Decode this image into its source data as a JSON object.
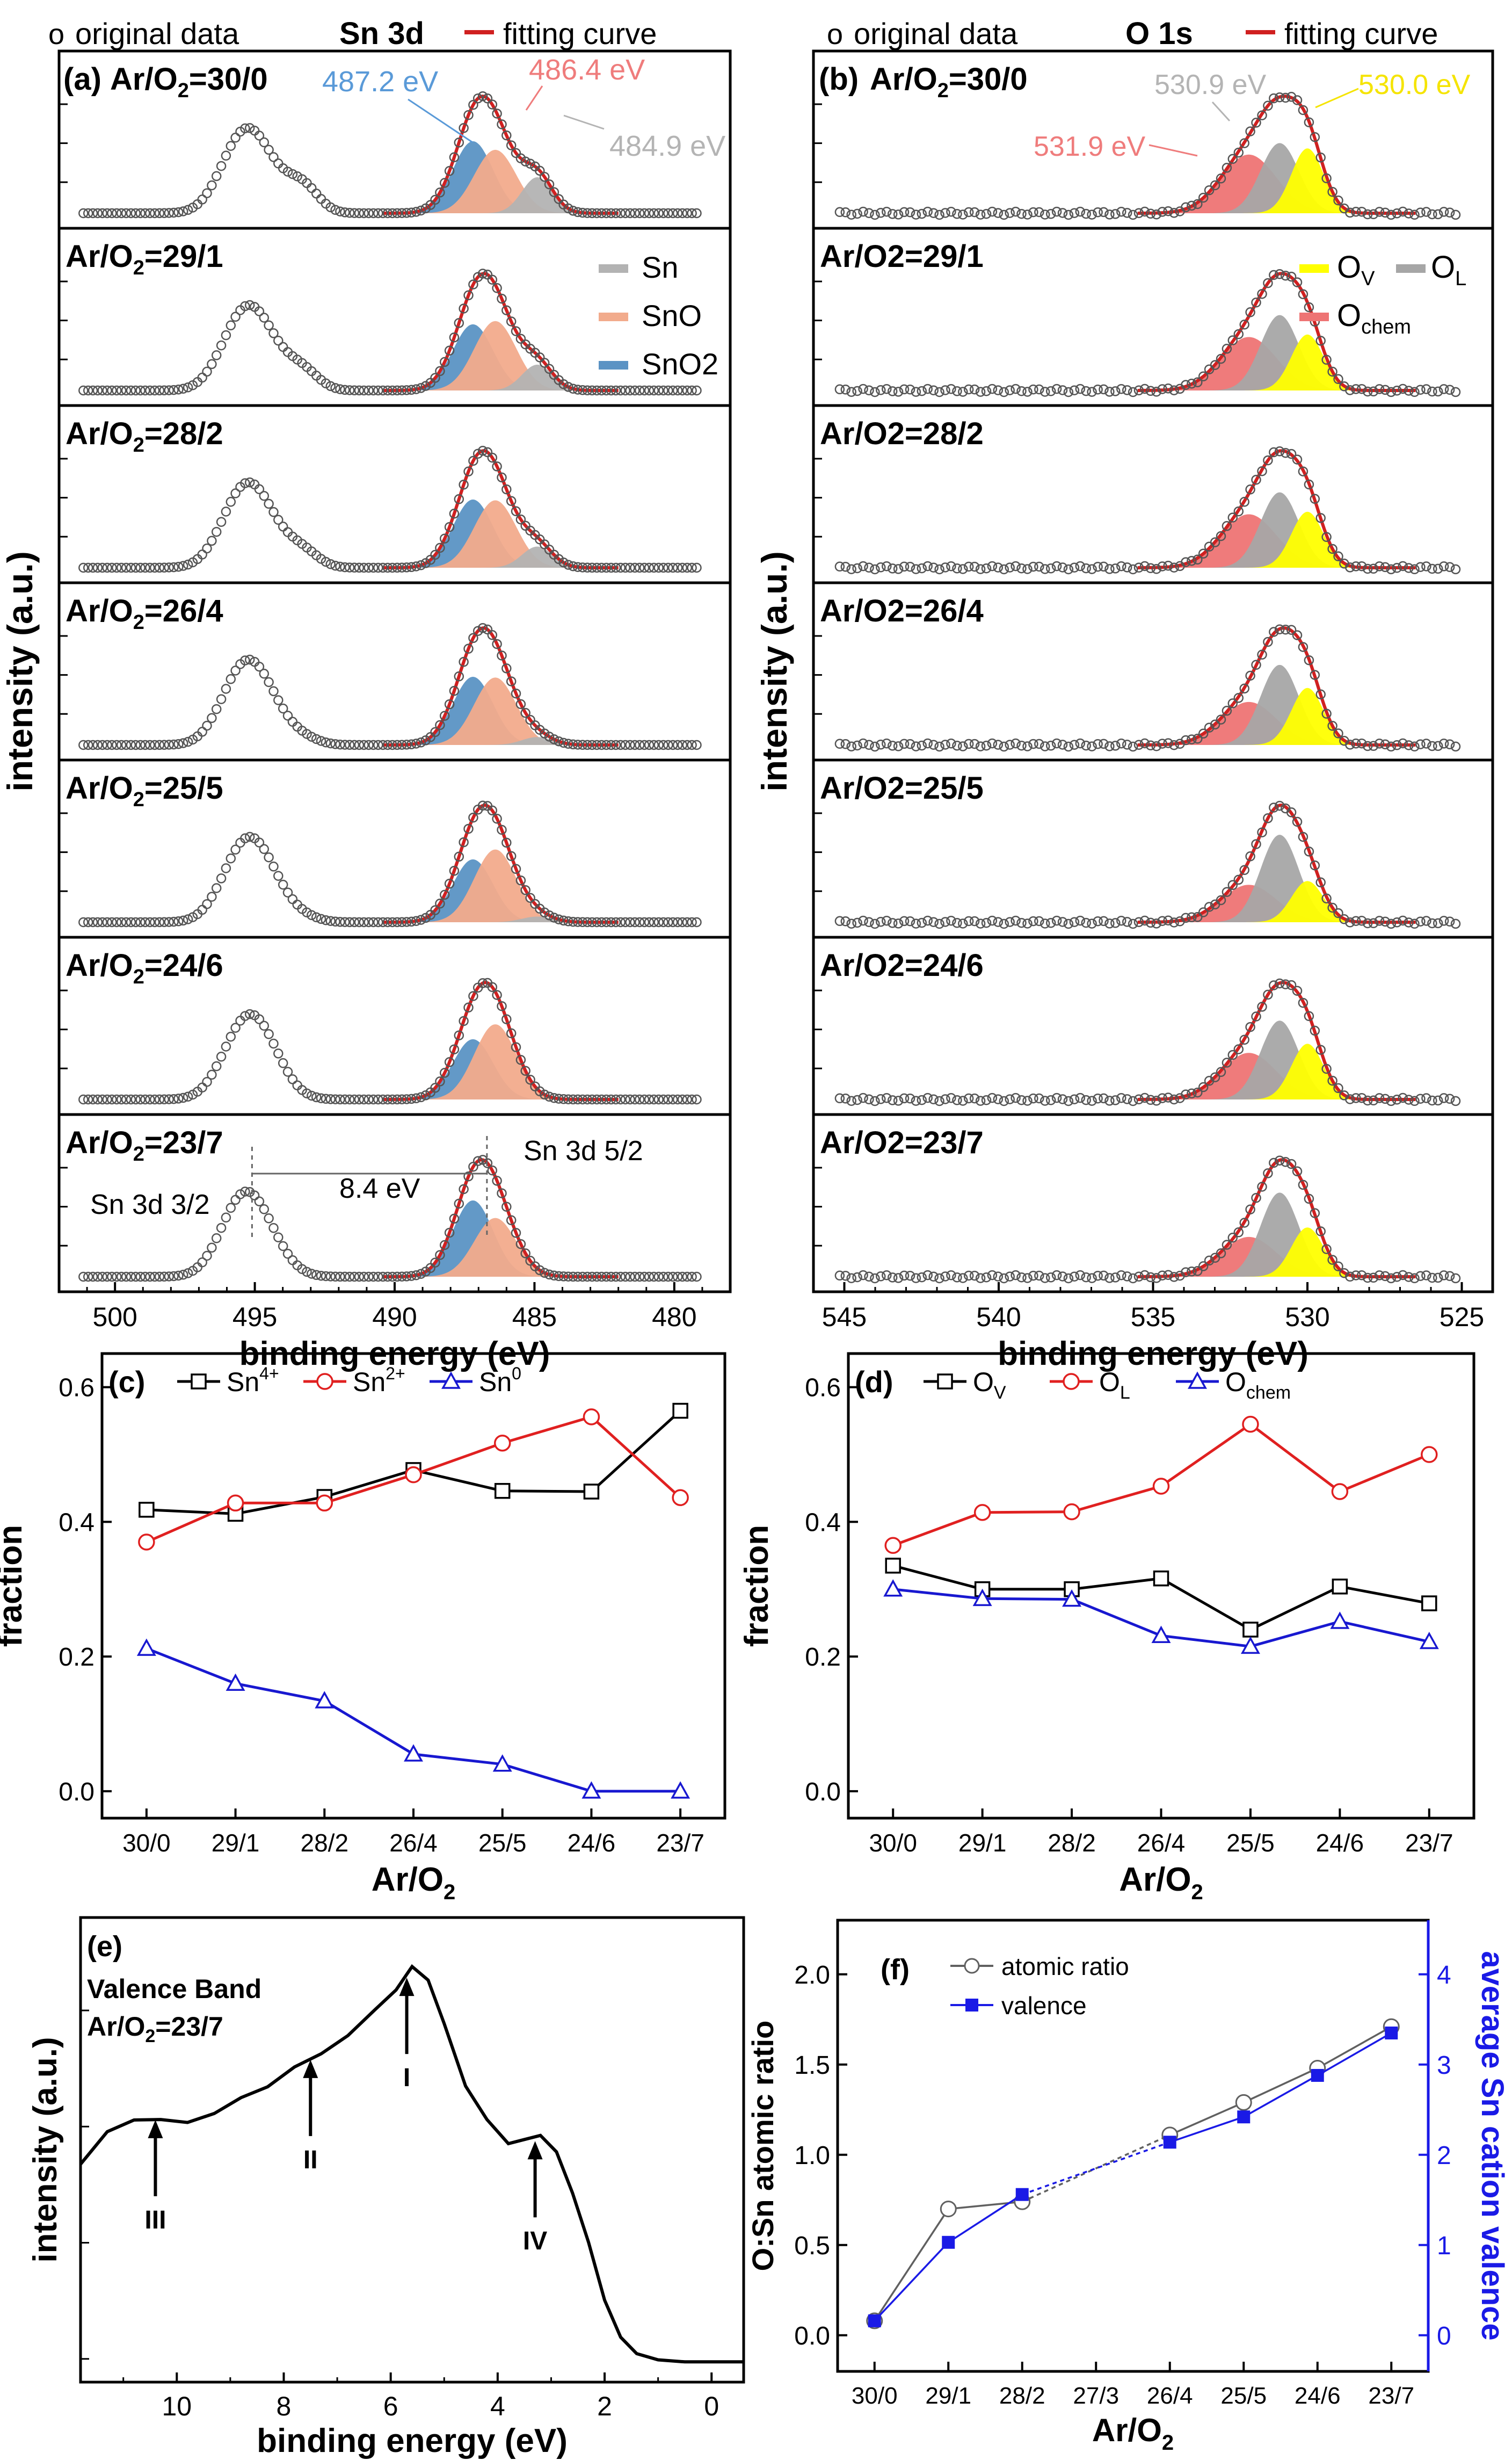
{
  "figure": "XPS and electrical analysis of Sn oxide films",
  "colors": {
    "frame": "#000000",
    "fit_red": "#d02020",
    "sn": "#b3b3b3",
    "sno": "#f2ab8c",
    "sno2": "#5b93c4",
    "ov": "#ffff00",
    "ol": "#a6a6a6",
    "ochem": "#ee7474",
    "series_black": "#000000",
    "series_red": "#e02020",
    "series_blue": "#1818d0",
    "valence_blue": "#1a1ae6",
    "label_blue": "#5a9ad8",
    "label_pink": "#ef7c7c",
    "label_gray": "#b4b4b4",
    "label_yellow": "#f5e400"
  },
  "chart_data": [
    {
      "id": "a",
      "type": "line",
      "title": "Sn 3d",
      "panel_label": "(a)",
      "legend": [
        "original data",
        "fitting curve"
      ],
      "legend_symbol": "ο",
      "xlabel": "binding energy (eV)",
      "ylabel": "intensity (a.u.)",
      "xlim": [
        502,
        478
      ],
      "xticks": [
        500,
        495,
        490,
        485,
        480
      ],
      "components": [
        "Sn",
        "SnO",
        "SnO2"
      ],
      "component_labels": [
        "Sn",
        "SnO",
        "SnO2"
      ],
      "peak_centers": {
        "Sn": 484.9,
        "SnO": 486.4,
        "SnO2": 487.2
      },
      "annotations": [
        "487.2 eV",
        "486.4 eV",
        "484.9 eV",
        "Sn 3d 3/2",
        "Sn 3d 5/2",
        "8.4 eV"
      ],
      "spin_orbit_splitting": 8.4,
      "stacks": [
        {
          "ratio": "Ar/O2=30/0",
          "label": "Ar/O",
          "sub": "2",
          "value": "=30/0",
          "fractions": {
            "Sn": 0.21,
            "SnO": 0.37,
            "SnO2": 0.42
          }
        },
        {
          "ratio": "Ar/O2=29/1",
          "label": "Ar/O",
          "sub": "2",
          "value": "=29/1",
          "fractions": {
            "Sn": 0.16,
            "SnO": 0.43,
            "SnO2": 0.41
          }
        },
        {
          "ratio": "Ar/O2=28/2",
          "label": "Ar/O",
          "sub": "2",
          "value": "=28/2",
          "fractions": {
            "Sn": 0.135,
            "SnO": 0.43,
            "SnO2": 0.435
          }
        },
        {
          "ratio": "Ar/O2=26/4",
          "label": "Ar/O",
          "sub": "2",
          "value": "=26/4",
          "fractions": {
            "Sn": 0.055,
            "SnO": 0.47,
            "SnO2": 0.475
          }
        },
        {
          "ratio": "Ar/O2=25/5",
          "label": "Ar/O",
          "sub": "2",
          "value": "=25/5",
          "fractions": {
            "Sn": 0.04,
            "SnO": 0.515,
            "SnO2": 0.445
          }
        },
        {
          "ratio": "Ar/O2=24/6",
          "label": "Ar/O",
          "sub": "2",
          "value": "=24/6",
          "fractions": {
            "Sn": 0.0,
            "SnO": 0.555,
            "SnO2": 0.445
          }
        },
        {
          "ratio": "Ar/O2=23/7",
          "label": "Ar/O",
          "sub": "2",
          "value": "=23/7",
          "fractions": {
            "Sn": 0.0,
            "SnO": 0.435,
            "SnO2": 0.565
          }
        }
      ]
    },
    {
      "id": "b",
      "type": "line",
      "title": "O 1s",
      "panel_label": "(b)",
      "legend": [
        "original data",
        "fitting curve"
      ],
      "legend_symbol": "ο",
      "xlabel": "binding energy (eV)",
      "ylabel": "intensity (a.u.)",
      "xlim": [
        546,
        524
      ],
      "xticks": [
        545,
        540,
        535,
        530,
        525
      ],
      "components": [
        "Ochem",
        "OL",
        "OV"
      ],
      "component_labels": {
        "ov": "O",
        "ov_sub": "V",
        "ol": "O",
        "ol_sub": "L",
        "ochem": "O",
        "ochem_sub": "chem"
      },
      "peak_centers": {
        "OV": 530.0,
        "OL": 530.9,
        "Ochem": 531.9
      },
      "annotations": [
        "530.9 eV",
        "530.0 eV",
        "531.9 eV"
      ],
      "stacks": [
        {
          "ratio": "Ar/O2=30/0",
          "label": "Ar/O",
          "sub": "2",
          "value": "=30/0",
          "fractions": {
            "OV": 0.335,
            "OL": 0.365,
            "Ochem": 0.3
          }
        },
        {
          "ratio": "Ar/O2=29/1",
          "label": "Ar/O2=29/1",
          "fractions": {
            "OV": 0.3,
            "OL": 0.415,
            "Ochem": 0.285
          }
        },
        {
          "ratio": "Ar/O2=28/2",
          "label": "Ar/O2=28/2",
          "fractions": {
            "OV": 0.3,
            "OL": 0.415,
            "Ochem": 0.285
          }
        },
        {
          "ratio": "Ar/O2=26/4",
          "label": "Ar/O2=26/4",
          "fractions": {
            "OV": 0.315,
            "OL": 0.455,
            "Ochem": 0.23
          }
        },
        {
          "ratio": "Ar/O2=25/5",
          "label": "Ar/O2=25/5",
          "fractions": {
            "OV": 0.24,
            "OL": 0.545,
            "Ochem": 0.215
          }
        },
        {
          "ratio": "Ar/O2=24/6",
          "label": "Ar/O2=24/6",
          "fractions": {
            "OV": 0.305,
            "OL": 0.445,
            "Ochem": 0.25
          }
        },
        {
          "ratio": "Ar/O2=23/7",
          "label": "Ar/O2=23/7",
          "fractions": {
            "OV": 0.28,
            "OL": 0.5,
            "Ochem": 0.22
          }
        }
      ]
    },
    {
      "id": "c",
      "type": "line",
      "panel_label": "(c)",
      "xlabel": "Ar/O",
      "xlabel_sub": "2",
      "ylabel": "fraction",
      "categories": [
        "30/0",
        "29/1",
        "28/2",
        "26/4",
        "25/5",
        "24/6",
        "23/7"
      ],
      "ylim": [
        -0.04,
        0.65
      ],
      "yticks": [
        0.0,
        0.2,
        0.4,
        0.6
      ],
      "ytick_labels": [
        "0.0",
        "0.2",
        "0.4",
        "0.6"
      ],
      "series": [
        {
          "name": "Sn4+",
          "label": "Sn",
          "sup": "4+",
          "marker": "square",
          "color": "#000000",
          "values": [
            0.418,
            0.412,
            0.437,
            0.477,
            0.446,
            0.445,
            0.565
          ]
        },
        {
          "name": "Sn2+",
          "label": "Sn",
          "sup": "2+",
          "marker": "circle",
          "color": "#e02020",
          "values": [
            0.37,
            0.428,
            0.428,
            0.47,
            0.517,
            0.556,
            0.436
          ]
        },
        {
          "name": "Sn0",
          "label": "Sn",
          "sup": "0",
          "marker": "triangle",
          "color": "#1818d0",
          "values": [
            0.212,
            0.16,
            0.134,
            0.055,
            0.04,
            0.0,
            0.0
          ]
        }
      ]
    },
    {
      "id": "d",
      "type": "line",
      "panel_label": "(d)",
      "xlabel": "Ar/O",
      "xlabel_sub": "2",
      "ylabel": "fraction",
      "categories": [
        "30/0",
        "29/1",
        "28/2",
        "26/4",
        "25/5",
        "24/6",
        "23/7"
      ],
      "ylim": [
        -0.04,
        0.65
      ],
      "yticks": [
        0.0,
        0.2,
        0.4,
        0.6
      ],
      "ytick_labels": [
        "0.0",
        "0.2",
        "0.4",
        "0.6"
      ],
      "series": [
        {
          "name": "OV",
          "label": "O",
          "sub": "V",
          "marker": "square",
          "color": "#000000",
          "values": [
            0.335,
            0.3,
            0.3,
            0.316,
            0.24,
            0.304,
            0.279
          ]
        },
        {
          "name": "OL",
          "label": "O",
          "sub": "L",
          "marker": "circle",
          "color": "#e02020",
          "values": [
            0.365,
            0.414,
            0.415,
            0.453,
            0.545,
            0.445,
            0.5
          ]
        },
        {
          "name": "Ochem",
          "label": "O",
          "sub": "chem",
          "marker": "triangle",
          "color": "#1818d0",
          "values": [
            0.3,
            0.286,
            0.285,
            0.231,
            0.215,
            0.252,
            0.222
          ]
        }
      ]
    },
    {
      "id": "e",
      "type": "line",
      "panel_label": "(e)",
      "title_lines": [
        "Valence Band",
        "Ar/O2=23/7"
      ],
      "title_ratio": {
        "label": "Ar/O",
        "sub": "2",
        "value": "=23/7"
      },
      "xlabel": "binding energy (eV)",
      "ylabel": "intensity (a.u.)",
      "xlim": [
        11.8,
        -0.6
      ],
      "xticks": [
        10,
        8,
        6,
        4,
        2,
        0
      ],
      "series": [
        {
          "name": "valence band",
          "x": [
            11.8,
            11.3,
            10.8,
            10.3,
            9.8,
            9.3,
            8.8,
            8.3,
            7.8,
            7.3,
            6.8,
            6.3,
            5.9,
            5.6,
            5.3,
            5.0,
            4.6,
            4.2,
            3.8,
            3.5,
            3.2,
            2.9,
            2.6,
            2.3,
            2.0,
            1.7,
            1.4,
            1.0,
            0.5,
            0.0,
            -0.6
          ],
          "y": [
            0.49,
            0.56,
            0.6,
            0.61,
            0.6,
            0.61,
            0.64,
            0.67,
            0.73,
            0.77,
            0.81,
            0.86,
            0.92,
            0.97,
            0.93,
            0.82,
            0.69,
            0.59,
            0.54,
            0.55,
            0.56,
            0.52,
            0.42,
            0.3,
            0.16,
            0.07,
            0.03,
            0.015,
            0.01,
            0.01,
            0.01
          ]
        }
      ],
      "arrows": [
        {
          "label": "I",
          "x": 5.7
        },
        {
          "label": "II",
          "x": 7.5
        },
        {
          "label": "III",
          "x": 10.4
        },
        {
          "label": "IV",
          "x": 3.3
        }
      ]
    },
    {
      "id": "f",
      "type": "line",
      "panel_label": "(f)",
      "xlabel": "Ar/O",
      "xlabel_sub": "2",
      "ylabel_left": "O:Sn atomic ratio",
      "ylabel_right": "average Sn cation valence",
      "categories": [
        "30/0",
        "29/1",
        "28/2",
        "27/3",
        "26/4",
        "25/5",
        "24/6",
        "23/7"
      ],
      "ylim_left": [
        -0.2,
        2.3
      ],
      "yticks_left": [
        0.0,
        0.5,
        1.0,
        1.5,
        2.0
      ],
      "ytick_labels_left": [
        "0.0",
        "0.5",
        "1.0",
        "1.5",
        "2.0"
      ],
      "ylim_right": [
        -0.4,
        4.6
      ],
      "yticks_right": [
        0,
        1,
        2,
        3,
        4
      ],
      "ytick_labels_right": [
        "0",
        "1",
        "2",
        "3",
        "4"
      ],
      "series": [
        {
          "name": "atomic ratio",
          "axis": "left",
          "marker": "circle",
          "color": "#606060",
          "values": [
            0.08,
            0.7,
            0.74,
            null,
            1.11,
            1.29,
            1.48,
            1.71
          ]
        },
        {
          "name": "valence",
          "axis": "right",
          "marker": "square",
          "color": "#1a1ae6",
          "values": [
            0.16,
            1.03,
            1.56,
            null,
            2.14,
            2.42,
            2.88,
            3.35
          ]
        }
      ]
    }
  ]
}
